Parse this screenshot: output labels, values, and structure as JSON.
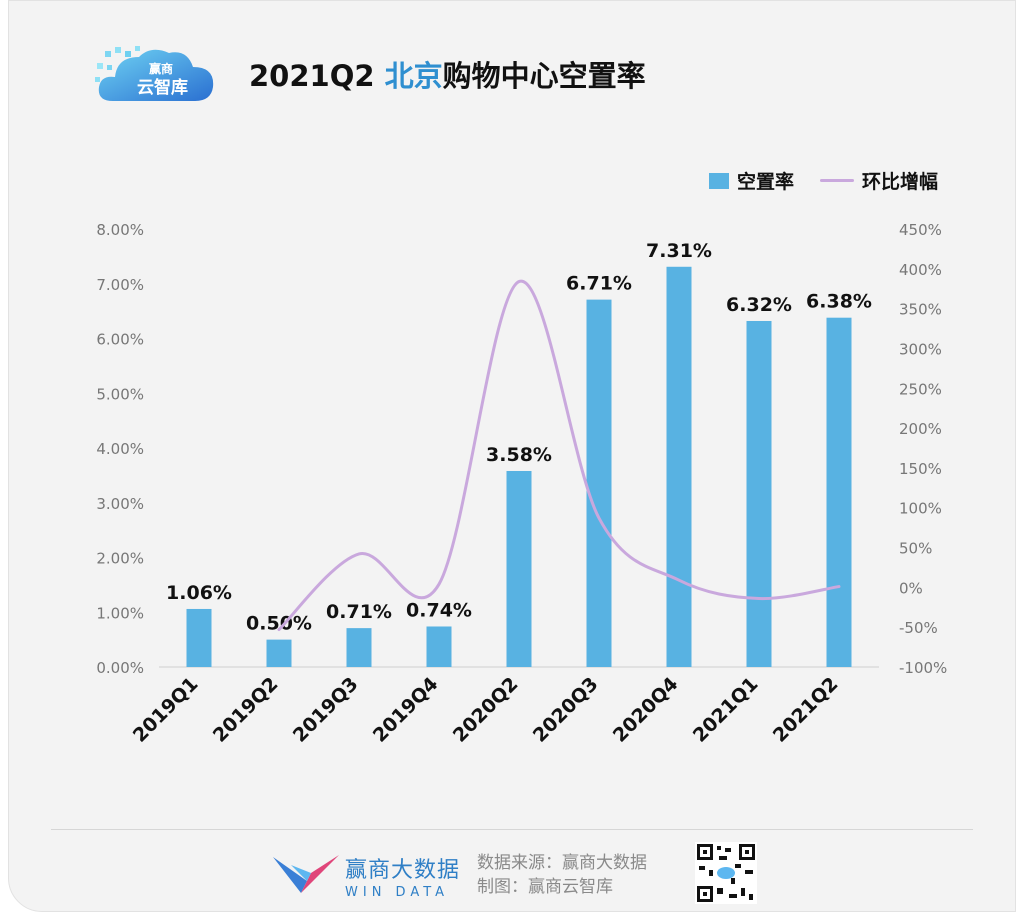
{
  "header": {
    "logo_text_top": "赢商",
    "logo_text_bottom": "云智库",
    "title_prefix": "2021Q2 ",
    "title_highlight": "北京",
    "title_suffix": "购物中心空置率"
  },
  "colors": {
    "bar": "#58b2e2",
    "line": "#c9a8dd",
    "highlight": "#2f8fd0",
    "brand": "#2f7fc6"
  },
  "chart_data": {
    "type": "bar",
    "categories": [
      "2019Q1",
      "2019Q2",
      "2019Q3",
      "2019Q4",
      "2020Q2",
      "2020Q3",
      "2020Q4",
      "2021Q1",
      "2021Q2"
    ],
    "series": [
      {
        "name": "空置率",
        "axis": "left",
        "values": [
          1.06,
          0.5,
          0.71,
          0.74,
          3.58,
          6.71,
          7.31,
          6.32,
          6.38
        ]
      },
      {
        "name": "环比增幅",
        "type": "line",
        "axis": "right",
        "values": [
          null,
          -53,
          42,
          4,
          384,
          87,
          9,
          -14,
          1
        ]
      }
    ],
    "data_labels": [
      "1.06%",
      "0.50%",
      "0.71%",
      "0.74%",
      "3.58%",
      "6.71%",
      "7.31%",
      "6.32%",
      "6.38%"
    ],
    "y_left": {
      "ylim": [
        0,
        8
      ],
      "ticks": [
        "0.00%",
        "1.00%",
        "2.00%",
        "3.00%",
        "4.00%",
        "5.00%",
        "6.00%",
        "7.00%",
        "8.00%"
      ]
    },
    "y_right": {
      "ylim": [
        -100,
        450
      ],
      "ticks": [
        "-100%",
        "-50%",
        "0%",
        "50%",
        "100%",
        "150%",
        "200%",
        "250%",
        "300%",
        "350%",
        "400%",
        "450%"
      ]
    },
    "legend_position": "top-right",
    "grid": false
  },
  "footer": {
    "brand_cn": "赢商大数据",
    "brand_en": "WIN DATA",
    "source_line": "数据来源：赢商大数据",
    "made_line": "制图：赢商云智库"
  }
}
